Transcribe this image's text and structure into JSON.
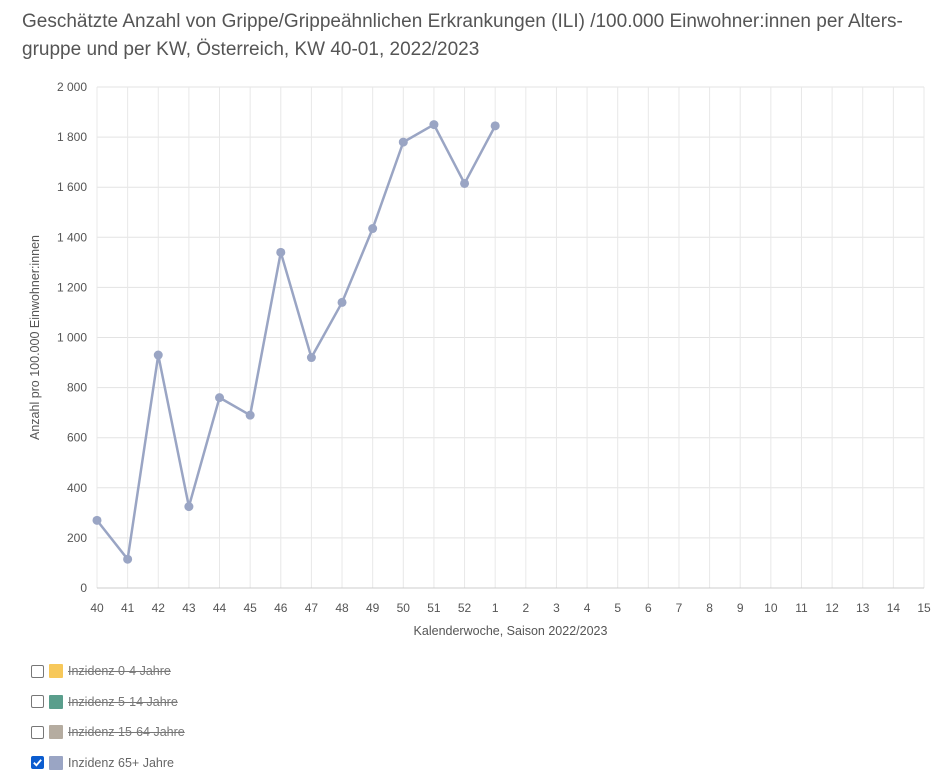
{
  "title": "Geschätzte Anzahl von Grippe/Grippeähnlichen Erkrankungen (ILI) /100.000 Einwohner:innen per Alters-gruppe und per KW, Österreich, KW 40-01, 2022/2023",
  "legend": [
    {
      "label": "Inzidenz 0-4 Jahre",
      "color": "#f7c85a",
      "checked": false
    },
    {
      "label": "Inzidenz 5-14 Jahre",
      "color": "#5a9e8c",
      "checked": false
    },
    {
      "label": "Inzidenz 15-64 Jahre",
      "color": "#b5aca0",
      "checked": false
    },
    {
      "label": "Inzidenz 65+ Jahre",
      "color": "#9aa5c4",
      "checked": true
    }
  ],
  "chart_data": {
    "type": "line",
    "xlabel": "Kalenderwoche, Saison 2022/2023",
    "ylabel": "Anzahl pro 100.000 Einwohner:innen",
    "categories": [
      "40",
      "41",
      "42",
      "43",
      "44",
      "45",
      "46",
      "47",
      "48",
      "49",
      "50",
      "51",
      "52",
      "1",
      "2",
      "3",
      "4",
      "5",
      "6",
      "7",
      "8",
      "9",
      "10",
      "11",
      "12",
      "13",
      "14",
      "15"
    ],
    "ylim": [
      0,
      2000
    ],
    "yticks": [
      0,
      200,
      400,
      600,
      800,
      1000,
      1200,
      1400,
      1600,
      1800,
      2000
    ],
    "ytick_labels": [
      "0",
      "200",
      "400",
      "600",
      "800",
      "1 000",
      "1 200",
      "1 400",
      "1 600",
      "1 800",
      "2 000"
    ],
    "grid": true,
    "series": [
      {
        "name": "Inzidenz 65+ Jahre",
        "color": "#9aa5c4",
        "values": [
          270,
          115,
          930,
          325,
          760,
          690,
          1340,
          920,
          1140,
          1435,
          1780,
          1850,
          1615,
          1845,
          null,
          null,
          null,
          null,
          null,
          null,
          null,
          null,
          null,
          null,
          null,
          null,
          null,
          null
        ]
      }
    ]
  }
}
